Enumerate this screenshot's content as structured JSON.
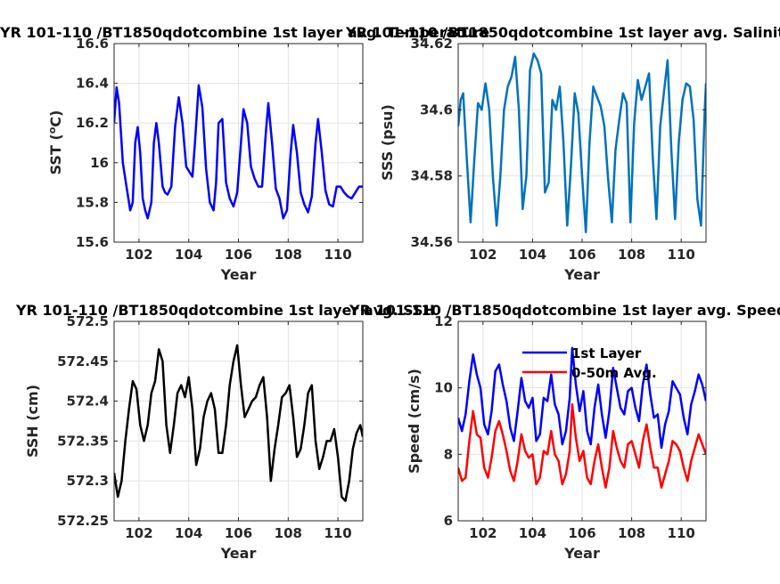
{
  "chart_data": [
    {
      "type": "line",
      "title": "YR 101-110 /BT1850qdotcombine 1st layer avg. Temperature",
      "xlabel": "Year",
      "ylabel": "SST (",
      "ylabel_sup": "o",
      "ylabel_tail": "C)",
      "xlim": [
        101,
        111
      ],
      "ylim": [
        15.6,
        16.6
      ],
      "xticks": [
        102,
        104,
        106,
        108,
        110
      ],
      "xtick_labels": [
        "102",
        "104",
        "106",
        "108",
        "110"
      ],
      "yticks": [
        15.6,
        15.8,
        16.0,
        16.2,
        16.4,
        16.6
      ],
      "ytick_labels": [
        "15.6",
        "15.8",
        "16",
        "16.2",
        "16.4",
        "16.6"
      ],
      "grid": true,
      "series": [
        {
          "color": "#0000ff",
          "x": [
            101.0,
            101.1,
            101.2,
            101.35,
            101.5,
            101.65,
            101.75,
            101.85,
            101.95,
            102.05,
            102.15,
            102.25,
            102.35,
            102.5,
            102.6,
            102.7,
            102.8,
            102.95,
            103.05,
            103.15,
            103.3,
            103.45,
            103.6,
            103.75,
            103.9,
            104.05,
            104.15,
            104.25,
            104.4,
            104.55,
            104.7,
            104.85,
            105.0,
            105.1,
            105.2,
            105.35,
            105.5,
            105.65,
            105.8,
            105.95,
            106.1,
            106.2,
            106.35,
            106.5,
            106.65,
            106.8,
            106.95,
            107.1,
            107.2,
            107.35,
            107.5,
            107.65,
            107.8,
            107.95,
            108.1,
            108.2,
            108.35,
            108.5,
            108.65,
            108.8,
            108.95,
            109.1,
            109.2,
            109.35,
            109.5,
            109.65,
            109.8,
            109.95,
            110.1,
            110.25,
            110.4,
            110.55,
            110.7,
            110.85,
            111.0
          ],
          "y": [
            16.2,
            16.38,
            16.3,
            16.0,
            15.88,
            15.76,
            15.8,
            16.1,
            16.18,
            16.05,
            15.82,
            15.76,
            15.72,
            15.8,
            16.1,
            16.2,
            16.1,
            15.88,
            15.85,
            15.84,
            15.88,
            16.18,
            16.33,
            16.2,
            15.98,
            15.95,
            15.93,
            16.1,
            16.39,
            16.28,
            15.97,
            15.8,
            15.76,
            15.9,
            16.2,
            16.22,
            15.9,
            15.82,
            15.78,
            15.85,
            16.1,
            16.27,
            16.2,
            15.98,
            15.92,
            15.88,
            15.88,
            16.15,
            16.3,
            16.1,
            15.87,
            15.82,
            15.72,
            15.76,
            16.05,
            16.19,
            16.05,
            15.85,
            15.79,
            15.75,
            15.83,
            16.1,
            16.22,
            16.05,
            15.86,
            15.79,
            15.78,
            15.88,
            15.88,
            15.85,
            15.83,
            15.82,
            15.85,
            15.88,
            15.88
          ]
        }
      ]
    },
    {
      "type": "line",
      "title": "YR 101-110 /BT1850qdotcombine 1st layer avg. Salinity",
      "xlabel": "Year",
      "ylabel": "SSS (psu)",
      "xlim": [
        101,
        111
      ],
      "ylim": [
        34.56,
        34.62
      ],
      "xticks": [
        102,
        104,
        106,
        108,
        110
      ],
      "xtick_labels": [
        "102",
        "104",
        "106",
        "108",
        "110"
      ],
      "yticks": [
        34.56,
        34.58,
        34.6,
        34.62
      ],
      "ytick_labels": [
        "34.56",
        "34.58",
        "34.6",
        "34.62"
      ],
      "grid": true,
      "series": [
        {
          "color": "#0072bd",
          "x": [
            101.0,
            101.1,
            101.2,
            101.35,
            101.5,
            101.65,
            101.8,
            101.95,
            102.1,
            102.25,
            102.4,
            102.55,
            102.7,
            102.85,
            103.0,
            103.15,
            103.3,
            103.45,
            103.6,
            103.75,
            103.9,
            104.05,
            104.2,
            104.35,
            104.5,
            104.65,
            104.8,
            104.95,
            105.1,
            105.25,
            105.4,
            105.55,
            105.7,
            105.85,
            106.0,
            106.15,
            106.3,
            106.45,
            106.6,
            106.75,
            106.9,
            107.05,
            107.2,
            107.35,
            107.5,
            107.65,
            107.8,
            107.95,
            108.1,
            108.25,
            108.4,
            108.55,
            108.7,
            108.85,
            109.0,
            109.15,
            109.3,
            109.45,
            109.6,
            109.75,
            109.9,
            110.05,
            110.2,
            110.35,
            110.5,
            110.65,
            110.8,
            110.95,
            111.0
          ],
          "y": [
            34.595,
            34.603,
            34.605,
            34.585,
            34.566,
            34.585,
            34.602,
            34.6,
            34.608,
            34.6,
            34.58,
            34.565,
            34.58,
            34.6,
            34.607,
            34.61,
            34.616,
            34.6,
            34.57,
            34.58,
            34.612,
            34.617,
            34.615,
            34.611,
            34.575,
            34.578,
            34.603,
            34.6,
            34.607,
            34.59,
            34.565,
            34.583,
            34.605,
            34.599,
            34.58,
            34.563,
            34.59,
            34.607,
            34.604,
            34.601,
            34.595,
            34.579,
            34.566,
            34.588,
            34.597,
            34.605,
            34.602,
            34.566,
            34.596,
            34.609,
            34.603,
            34.607,
            34.611,
            34.586,
            34.567,
            34.595,
            34.605,
            34.615,
            34.588,
            34.567,
            34.59,
            34.603,
            34.608,
            34.607,
            34.597,
            34.573,
            34.565,
            34.6,
            34.608
          ]
        }
      ]
    },
    {
      "type": "line",
      "title": "YR 101-110 /BT1850qdotcombine 1st layer avg. SSH",
      "xlabel": "Year",
      "ylabel": "SSH (cm)",
      "xlim": [
        101,
        111
      ],
      "ylim": [
        572.25,
        572.5
      ],
      "xticks": [
        102,
        104,
        106,
        108,
        110
      ],
      "xtick_labels": [
        "102",
        "104",
        "106",
        "108",
        "110"
      ],
      "yticks": [
        572.25,
        572.3,
        572.35,
        572.4,
        572.45,
        572.5
      ],
      "ytick_labels": [
        "572.25",
        "572.3",
        "572.35",
        "572.4",
        "572.45",
        "572.5"
      ],
      "grid": true,
      "series": [
        {
          "color": "#000000",
          "x": [
            101.0,
            101.15,
            101.3,
            101.45,
            101.6,
            101.75,
            101.9,
            102.05,
            102.2,
            102.35,
            102.5,
            102.65,
            102.8,
            102.95,
            103.1,
            103.25,
            103.4,
            103.55,
            103.7,
            103.85,
            104.0,
            104.15,
            104.3,
            104.45,
            104.6,
            104.75,
            104.9,
            105.05,
            105.2,
            105.35,
            105.5,
            105.65,
            105.8,
            105.95,
            106.1,
            106.25,
            106.4,
            106.55,
            106.7,
            106.85,
            107.0,
            107.15,
            107.3,
            107.45,
            107.6,
            107.75,
            107.9,
            108.05,
            108.2,
            108.35,
            108.5,
            108.65,
            108.8,
            108.95,
            109.1,
            109.25,
            109.4,
            109.55,
            109.7,
            109.85,
            110.0,
            110.15,
            110.3,
            110.45,
            110.6,
            110.75,
            110.9,
            111.0
          ],
          "y": [
            572.31,
            572.28,
            572.3,
            572.35,
            572.39,
            572.425,
            572.415,
            572.37,
            572.35,
            572.37,
            572.41,
            572.425,
            572.465,
            572.45,
            572.37,
            572.335,
            572.37,
            572.41,
            572.42,
            572.405,
            572.43,
            572.39,
            572.32,
            572.34,
            572.38,
            572.4,
            572.41,
            572.39,
            572.335,
            572.335,
            572.37,
            572.42,
            572.45,
            572.47,
            572.42,
            572.38,
            572.39,
            572.4,
            572.405,
            572.42,
            572.43,
            572.38,
            572.3,
            572.34,
            572.37,
            572.405,
            572.41,
            572.42,
            572.38,
            572.33,
            572.34,
            572.37,
            572.41,
            572.42,
            572.35,
            572.315,
            572.33,
            572.35,
            572.35,
            572.365,
            572.33,
            572.28,
            572.275,
            572.3,
            572.34,
            572.36,
            572.37,
            572.355
          ]
        }
      ]
    },
    {
      "type": "line",
      "title": "YR 101-110 /BT1850qdotcombine 1st layer avg. Speed",
      "xlabel": "Year",
      "ylabel": "Speed (cm/s)",
      "xlim": [
        101,
        111
      ],
      "ylim": [
        6,
        12
      ],
      "xticks": [
        102,
        104,
        106,
        108,
        110
      ],
      "xtick_labels": [
        "102",
        "104",
        "106",
        "108",
        "110"
      ],
      "yticks": [
        6,
        8,
        10,
        12
      ],
      "ytick_labels": [
        "6",
        "8",
        "10",
        "12"
      ],
      "grid": true,
      "legend": {
        "location": "top-right",
        "entries": [
          "1st Layer",
          "0-50m Avg."
        ]
      },
      "series": [
        {
          "name": "1st Layer",
          "color": "#0000ff",
          "x": [
            101.0,
            101.15,
            101.3,
            101.45,
            101.6,
            101.75,
            101.9,
            102.05,
            102.2,
            102.35,
            102.5,
            102.65,
            102.8,
            102.95,
            103.1,
            103.25,
            103.4,
            103.55,
            103.7,
            103.85,
            104.0,
            104.15,
            104.3,
            104.45,
            104.6,
            104.75,
            104.9,
            105.05,
            105.2,
            105.35,
            105.5,
            105.6,
            105.75,
            105.9,
            106.05,
            106.2,
            106.35,
            106.5,
            106.65,
            106.8,
            106.95,
            107.1,
            107.25,
            107.4,
            107.55,
            107.7,
            107.85,
            108.0,
            108.15,
            108.3,
            108.45,
            108.6,
            108.75,
            108.9,
            109.05,
            109.2,
            109.35,
            109.5,
            109.65,
            109.8,
            109.95,
            110.1,
            110.25,
            110.4,
            110.55,
            110.7,
            110.85,
            111.0
          ],
          "y": [
            9.1,
            8.7,
            9.2,
            10.2,
            11.0,
            10.4,
            10.0,
            8.9,
            8.6,
            9.3,
            10.5,
            10.7,
            10.1,
            9.6,
            8.8,
            8.4,
            9.3,
            10.3,
            9.6,
            9.4,
            9.7,
            8.4,
            8.6,
            9.7,
            9.6,
            10.4,
            9.5,
            9.2,
            8.3,
            8.7,
            9.7,
            11.2,
            10.1,
            9.3,
            9.9,
            8.7,
            8.3,
            9.4,
            10.1,
            9.2,
            8.5,
            9.3,
            10.6,
            10.0,
            9.4,
            9.2,
            9.9,
            10.0,
            9.4,
            9.0,
            10.1,
            10.7,
            9.8,
            9.1,
            9.2,
            8.2,
            8.9,
            9.3,
            10.2,
            10.0,
            9.8,
            9.1,
            8.6,
            9.5,
            9.9,
            10.4,
            10.1,
            9.6
          ]
        },
        {
          "name": "0-50m Avg.",
          "color": "#ff0000",
          "x": [
            101.0,
            101.15,
            101.3,
            101.45,
            101.6,
            101.75,
            101.9,
            102.05,
            102.2,
            102.35,
            102.5,
            102.65,
            102.8,
            102.95,
            103.1,
            103.25,
            103.4,
            103.55,
            103.7,
            103.85,
            104.0,
            104.15,
            104.3,
            104.45,
            104.6,
            104.75,
            104.9,
            105.05,
            105.2,
            105.35,
            105.5,
            105.6,
            105.75,
            105.9,
            106.05,
            106.2,
            106.35,
            106.5,
            106.65,
            106.8,
            106.95,
            107.1,
            107.25,
            107.4,
            107.55,
            107.7,
            107.85,
            108.0,
            108.15,
            108.3,
            108.45,
            108.6,
            108.75,
            108.9,
            109.05,
            109.2,
            109.35,
            109.5,
            109.65,
            109.8,
            109.95,
            110.1,
            110.25,
            110.4,
            110.55,
            110.7,
            110.85,
            111.0
          ],
          "y": [
            7.6,
            7.2,
            7.3,
            8.4,
            9.3,
            8.6,
            8.5,
            7.6,
            7.3,
            7.9,
            8.7,
            9.0,
            8.6,
            8.1,
            7.5,
            7.2,
            7.8,
            8.6,
            8.1,
            7.9,
            8.0,
            7.1,
            7.3,
            8.1,
            8.0,
            8.7,
            8.0,
            7.8,
            7.1,
            7.4,
            8.1,
            9.5,
            8.5,
            7.8,
            8.1,
            7.3,
            7.1,
            7.8,
            8.3,
            7.6,
            7.0,
            7.6,
            8.7,
            8.2,
            7.8,
            7.6,
            8.3,
            8.4,
            8.0,
            7.6,
            8.4,
            8.9,
            8.2,
            7.6,
            7.6,
            7.0,
            7.4,
            7.8,
            8.4,
            8.3,
            8.1,
            7.6,
            7.2,
            7.8,
            8.2,
            8.6,
            8.3,
            8.0
          ]
        }
      ]
    }
  ]
}
